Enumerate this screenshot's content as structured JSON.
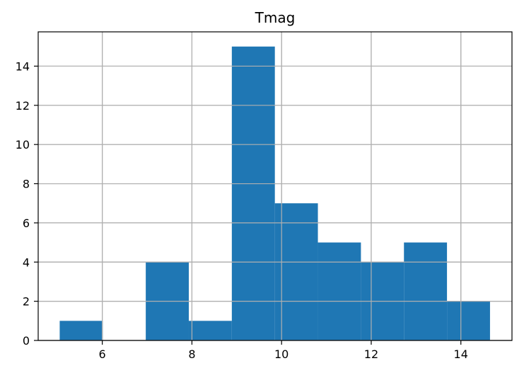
{
  "chart_data": {
    "type": "bar",
    "title": "Tmag",
    "xlabel": "",
    "ylabel": "",
    "xlim": [
      4.57,
      15.14
    ],
    "ylim": [
      0,
      15.75
    ],
    "xticks": [
      6,
      8,
      10,
      12,
      14
    ],
    "yticks": [
      0,
      2,
      4,
      6,
      8,
      10,
      12,
      14
    ],
    "grid": true,
    "bins": [
      {
        "left": 5.05,
        "right": 6.01,
        "count": 1
      },
      {
        "left": 6.01,
        "right": 6.97,
        "count": 0
      },
      {
        "left": 6.97,
        "right": 7.93,
        "count": 4
      },
      {
        "left": 7.93,
        "right": 8.89,
        "count": 1
      },
      {
        "left": 8.89,
        "right": 9.85,
        "count": 15
      },
      {
        "left": 9.85,
        "right": 10.81,
        "count": 7
      },
      {
        "left": 10.81,
        "right": 11.77,
        "count": 5
      },
      {
        "left": 11.77,
        "right": 12.73,
        "count": 4
      },
      {
        "left": 12.73,
        "right": 13.69,
        "count": 5
      },
      {
        "left": 13.69,
        "right": 14.65,
        "count": 2
      }
    ],
    "colors": {
      "bar": "#1f77b4",
      "grid": "#b0b0b0",
      "axis": "#000000"
    }
  }
}
